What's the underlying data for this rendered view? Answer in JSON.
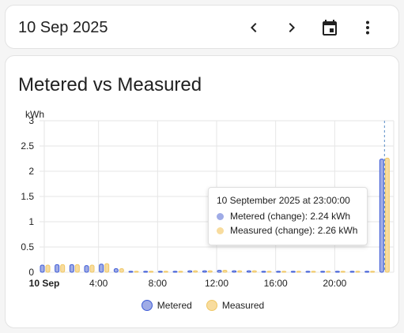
{
  "header": {
    "date": "10 Sep 2025",
    "prev_icon": "chevron-left-icon",
    "next_icon": "chevron-right-icon",
    "calendar_icon": "calendar-icon",
    "menu_icon": "more-vertical-icon"
  },
  "card": {
    "title": "Metered vs Measured"
  },
  "colors": {
    "metered_fill": "#9fabe6",
    "metered_stroke": "#3d5bd6",
    "measured_fill": "#f8dc9e",
    "measured_stroke": "#efc764"
  },
  "tooltip": {
    "title": "10 September 2025 at 23:00:00",
    "rows": [
      {
        "label": "Metered (change): 2.24 kWh"
      },
      {
        "label": "Measured (change): 2.26 kWh"
      }
    ]
  },
  "legend": [
    {
      "label": "Metered"
    },
    {
      "label": "Measured"
    }
  ],
  "chart_data": {
    "type": "bar",
    "ylabel": "kWh",
    "ylim": [
      0,
      3
    ],
    "yticks": [
      "0",
      "0.5",
      "1",
      "1.5",
      "2",
      "2.5",
      "3"
    ],
    "xticks": [
      "10 Sep",
      "4:00",
      "8:00",
      "12:00",
      "16:00",
      "20:00"
    ],
    "categories": [
      "0:00",
      "1:00",
      "2:00",
      "3:00",
      "4:00",
      "5:00",
      "6:00",
      "7:00",
      "8:00",
      "9:00",
      "10:00",
      "11:00",
      "12:00",
      "13:00",
      "14:00",
      "15:00",
      "16:00",
      "17:00",
      "18:00",
      "19:00",
      "20:00",
      "21:00",
      "22:00",
      "23:00"
    ],
    "series": [
      {
        "name": "Metered",
        "values": [
          0.14,
          0.15,
          0.15,
          0.13,
          0.16,
          0.07,
          0.02,
          0.02,
          0.02,
          0.02,
          0.03,
          0.03,
          0.04,
          0.03,
          0.03,
          0.02,
          0.02,
          0.02,
          0.02,
          0.02,
          0.02,
          0.02,
          0.02,
          2.24
        ]
      },
      {
        "name": "Measured",
        "values": [
          0.14,
          0.15,
          0.15,
          0.14,
          0.17,
          0.07,
          0.02,
          0.02,
          0.02,
          0.02,
          0.03,
          0.03,
          0.04,
          0.03,
          0.03,
          0.02,
          0.02,
          0.02,
          0.02,
          0.02,
          0.02,
          0.02,
          0.02,
          2.26
        ]
      }
    ],
    "grid": true,
    "legend_position": "bottom"
  }
}
